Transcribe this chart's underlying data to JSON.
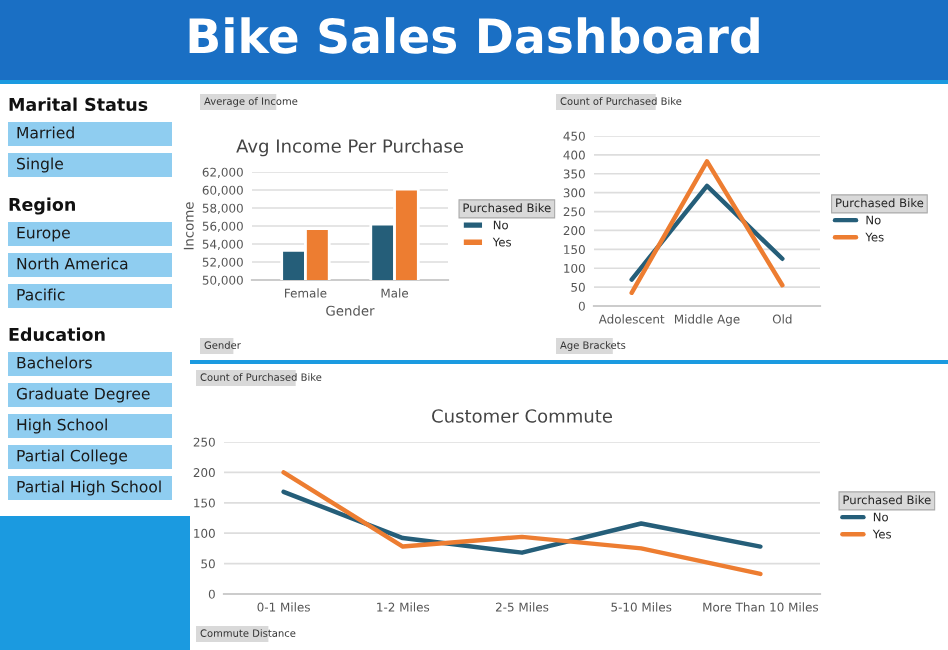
{
  "chart_data": [
    {
      "type": "other",
      "title": "Bike Sales Dashboard"
    },
    {
      "type": "other",
      "title": "Marital Status",
      "annotations": [
        "Married",
        "Single"
      ]
    },
    {
      "type": "other",
      "title": "Region",
      "annotations": [
        "Europe",
        "North America",
        "Pacific"
      ]
    },
    {
      "type": "other",
      "title": "Education",
      "annotations": [
        "Bachelors",
        "Graduate Degree",
        "High School",
        "Partial College",
        "Partial High School"
      ]
    },
    {
      "type": "bar",
      "title": "Avg Income Per Purchase",
      "xlabel": "Gender",
      "ylabel": "Income",
      "legend_title": "Purchased Bike",
      "legend": "right",
      "grid": "y",
      "categories": [
        "Female",
        "Male"
      ],
      "series": [
        {
          "name": "No",
          "color": "#255e79",
          "values": [
            53300,
            56200
          ]
        },
        {
          "name": "Yes",
          "color": "#ed7d31",
          "values": [
            55700,
            60100
          ]
        }
      ],
      "ylim": [
        50000,
        62000
      ],
      "yticks": [
        {
          "value": 50000,
          "label": "50,000"
        },
        {
          "value": 52000,
          "label": "52,000"
        },
        {
          "value": 54000,
          "label": "54,000"
        },
        {
          "value": 56000,
          "label": "56,000"
        },
        {
          "value": 58000,
          "label": "58,000"
        },
        {
          "value": 60000,
          "label": "60,000"
        },
        {
          "value": 62000,
          "label": "62,000"
        }
      ],
      "annotations": [
        "Average of Income",
        "Gender"
      ]
    },
    {
      "type": "line",
      "legend_title": "Purchased Bike",
      "legend": "right",
      "grid": "y",
      "categories": [
        "Adolescent",
        "Middle Age",
        "Old"
      ],
      "series": [
        {
          "name": "No",
          "color": "#255e79",
          "values": [
            70,
            318,
            125
          ]
        },
        {
          "name": "Yes",
          "color": "#ed7d31",
          "values": [
            35,
            383,
            55
          ]
        }
      ],
      "ylim": [
        0,
        450
      ],
      "yticks": [
        0,
        50,
        100,
        150,
        200,
        250,
        300,
        350,
        400,
        450
      ],
      "annotations": [
        "Count of Purchased Bike",
        "Age Brackets"
      ]
    },
    {
      "type": "line",
      "title": "Customer Commute",
      "legend_title": "Purchased Bike",
      "legend": "right",
      "grid": "y",
      "categories": [
        "0-1 Miles",
        "1-2 Miles",
        "2-5 Miles",
        "5-10 Miles",
        "More Than 10 Miles"
      ],
      "series": [
        {
          "name": "No",
          "color": "#255e79",
          "values": [
            168,
            92,
            68,
            116,
            78
          ]
        },
        {
          "name": "Yes",
          "color": "#ed7d31",
          "values": [
            200,
            78,
            94,
            75,
            33
          ]
        }
      ],
      "ylim": [
        0,
        250
      ],
      "yticks": [
        0,
        50,
        100,
        150,
        200,
        250
      ],
      "annotations": [
        "Count of Purchased Bike",
        "Commute Distance"
      ]
    }
  ]
}
